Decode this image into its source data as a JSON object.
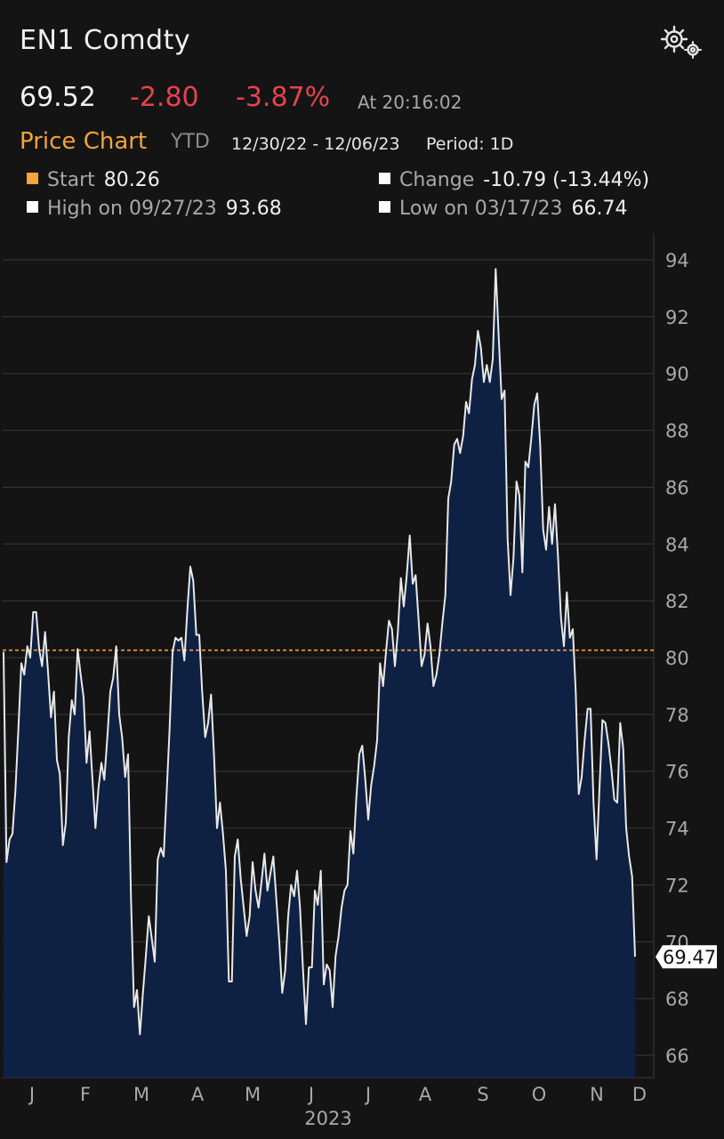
{
  "header": {
    "title": "EN1 Comdty",
    "settings_icon": "gear-icon"
  },
  "quote": {
    "last": "69.52",
    "change": "-2.80",
    "change_pct": "-3.87%",
    "time": "At 20:16:02"
  },
  "chart_header": {
    "label": "Price Chart",
    "timeframe": "YTD",
    "range": "12/30/22 - 12/06/23",
    "period": "Period: 1D"
  },
  "stats": {
    "start": {
      "label": "Start",
      "value": "80.26"
    },
    "change": {
      "label": "Change",
      "value": "-10.79 (-13.44%)"
    },
    "high": {
      "label": "High on 09/27/23",
      "value": "93.68"
    },
    "low": {
      "label": "Low on 03/17/23",
      "value": "66.74"
    }
  },
  "colors": {
    "background": "#141414",
    "line": "#e8e8e8",
    "area": "#0f2142",
    "start_line": "#f5a33a",
    "negative": "#e8414f"
  },
  "chart_data": {
    "type": "area",
    "x_start": "2022-12-30",
    "x_end": "2023-12-06",
    "year_label": "2023",
    "month_labels": [
      "J",
      "F",
      "M",
      "A",
      "M",
      "J",
      "J",
      "A",
      "S",
      "O",
      "N",
      "D"
    ],
    "y_ticks": [
      94,
      92,
      90,
      88,
      86,
      84,
      82,
      80,
      78,
      76,
      74,
      72,
      70,
      68,
      66
    ],
    "ylim": [
      65.3,
      95
    ],
    "grid": true,
    "start_reference": 80.26,
    "last_value_label": "69.47",
    "series": [
      {
        "values": [
          80.2,
          72.8,
          73.6,
          73.8,
          75.3,
          77.5,
          79.8,
          79.4,
          80.4,
          80.0,
          81.6,
          81.6,
          80.3,
          79.7,
          80.9,
          79.5,
          77.9,
          78.8,
          76.4,
          75.9,
          73.4,
          74.2,
          77.2,
          78.5,
          78.0,
          80.3,
          79.4,
          78.6,
          76.3,
          77.4,
          75.7,
          74.0,
          75.4,
          76.3,
          75.7,
          77.2,
          78.8,
          79.3,
          80.4,
          78.0,
          77.2,
          75.8,
          76.6,
          71.5,
          67.7,
          68.3,
          66.74,
          68.2,
          69.5,
          70.9,
          70.1,
          69.3,
          72.9,
          73.3,
          73.0,
          75.2,
          77.5,
          80.2,
          80.7,
          80.6,
          80.7,
          79.9,
          81.7,
          83.2,
          82.7,
          80.8,
          80.8,
          78.8,
          77.2,
          77.7,
          78.7,
          76.5,
          74.0,
          74.9,
          73.8,
          72.5,
          68.6,
          68.6,
          73.0,
          73.6,
          72.2,
          71.2,
          70.2,
          70.9,
          72.8,
          71.8,
          71.2,
          72.1,
          73.1,
          71.8,
          72.4,
          73.0,
          71.5,
          70.0,
          68.2,
          69.0,
          70.9,
          72.0,
          71.6,
          72.5,
          71.2,
          69.0,
          67.1,
          69.1,
          69.1,
          71.8,
          71.3,
          72.5,
          68.5,
          69.2,
          69.0,
          67.7,
          69.5,
          70.2,
          71.2,
          71.8,
          72.0,
          73.9,
          73.1,
          75.1,
          76.6,
          76.9,
          75.7,
          74.3,
          75.5,
          76.2,
          77.1,
          79.8,
          79.0,
          80.2,
          81.3,
          81.0,
          79.7,
          80.9,
          82.8,
          81.8,
          82.9,
          84.3,
          82.6,
          82.9,
          81.3,
          79.7,
          80.1,
          81.2,
          80.4,
          79.0,
          79.4,
          80.1,
          81.2,
          82.2,
          85.6,
          86.2,
          87.5,
          87.7,
          87.2,
          87.8,
          89.0,
          88.6,
          89.8,
          90.3,
          91.5,
          90.9,
          89.7,
          90.3,
          89.7,
          90.5,
          93.68,
          91.3,
          89.1,
          89.4,
          84.2,
          82.2,
          83.5,
          86.2,
          85.7,
          83.0,
          86.9,
          86.7,
          87.7,
          88.9,
          89.3,
          87.5,
          84.5,
          83.8,
          85.3,
          84.0,
          85.4,
          83.6,
          81.4,
          80.4,
          82.3,
          80.7,
          81.0,
          78.8,
          75.2,
          75.8,
          77.1,
          78.2,
          78.2,
          74.9,
          72.9,
          75.4,
          77.8,
          77.7,
          77.0,
          76.1,
          75.0,
          74.9,
          77.7,
          76.8,
          74.0,
          73.0,
          72.3,
          69.47
        ]
      }
    ]
  }
}
